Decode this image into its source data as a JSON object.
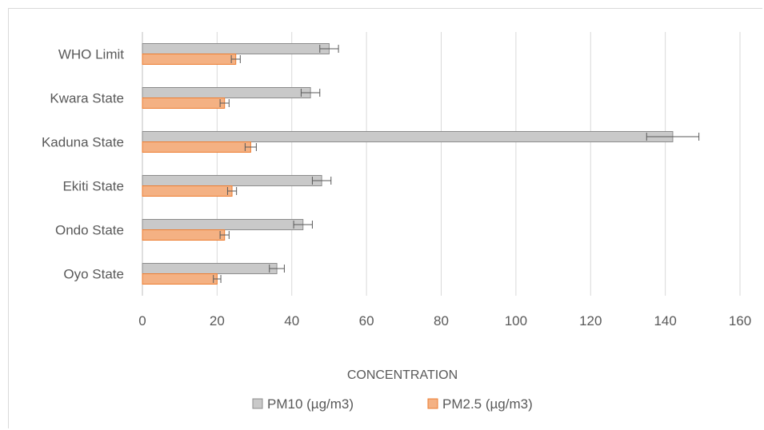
{
  "chart_data": {
    "type": "bar",
    "orientation": "horizontal",
    "categories": [
      "Oyo State",
      "Ondo State",
      "Ekiti State",
      "Kaduna State",
      "Kwara State",
      "WHO Limit"
    ],
    "series": [
      {
        "name": "PM10 (µg/m3)",
        "values": [
          36,
          43,
          48,
          142,
          45,
          50
        ],
        "errors": [
          2,
          2.5,
          2.5,
          7,
          2.5,
          2.5
        ],
        "color": "#c9c9c9",
        "stroke": "#8c8c8c"
      },
      {
        "name": "PM2.5 (µg/m3)",
        "values": [
          20,
          22,
          24,
          29,
          22,
          25
        ],
        "errors": [
          1,
          1.2,
          1.2,
          1.5,
          1.2,
          1.2
        ],
        "color": "#f4b183",
        "stroke": "#ed7d31"
      }
    ],
    "xlabel": "CONCENTRATION",
    "ylabel": "",
    "xlim": [
      0,
      160
    ],
    "xticks": [
      "0",
      "20",
      "40",
      "60",
      "80",
      "100",
      "120",
      "140",
      "160"
    ],
    "grid": true,
    "legend_position": "bottom"
  }
}
